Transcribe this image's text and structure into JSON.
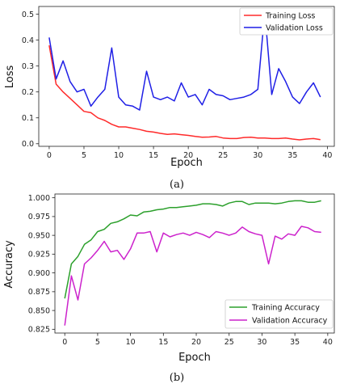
{
  "chart_data": [
    {
      "type": "line",
      "caption": "(a)",
      "xlabel": "Epoch",
      "ylabel": "Loss",
      "xlim": [
        -1.5,
        41
      ],
      "ylim": [
        -0.01,
        0.53
      ],
      "xticks": [
        0,
        5,
        10,
        15,
        20,
        25,
        30,
        35,
        40
      ],
      "yticks": [
        0.0,
        0.1,
        0.2,
        0.3,
        0.4,
        0.5
      ],
      "ytick_labels": [
        "0.0",
        "0.1",
        "0.2",
        "0.3",
        "0.4",
        "0.5"
      ],
      "legend_position": "top-right",
      "grid": false,
      "x": [
        0,
        1,
        2,
        3,
        4,
        5,
        6,
        7,
        8,
        9,
        10,
        11,
        12,
        13,
        14,
        15,
        16,
        17,
        18,
        19,
        20,
        21,
        22,
        23,
        24,
        25,
        26,
        27,
        28,
        29,
        30,
        31,
        32,
        33,
        34,
        35,
        36,
        37,
        38,
        39
      ],
      "series": [
        {
          "name": "Training Loss",
          "color": "#ff2a2a",
          "values": [
            0.38,
            0.23,
            0.2,
            0.175,
            0.15,
            0.125,
            0.12,
            0.1,
            0.09,
            0.075,
            0.065,
            0.065,
            0.06,
            0.055,
            0.048,
            0.045,
            0.04,
            0.036,
            0.038,
            0.035,
            0.032,
            0.028,
            0.025,
            0.026,
            0.028,
            0.022,
            0.02,
            0.02,
            0.024,
            0.025,
            0.022,
            0.022,
            0.02,
            0.02,
            0.022,
            0.018,
            0.015,
            0.018,
            0.02,
            0.016
          ]
        },
        {
          "name": "Validation Loss",
          "color": "#1f1fe6",
          "values": [
            0.41,
            0.25,
            0.32,
            0.24,
            0.2,
            0.21,
            0.145,
            0.18,
            0.21,
            0.37,
            0.18,
            0.15,
            0.145,
            0.13,
            0.28,
            0.18,
            0.17,
            0.18,
            0.165,
            0.235,
            0.18,
            0.19,
            0.15,
            0.21,
            0.19,
            0.185,
            0.17,
            0.175,
            0.18,
            0.19,
            0.21,
            0.51,
            0.19,
            0.29,
            0.24,
            0.18,
            0.155,
            0.2,
            0.235,
            0.18
          ]
        }
      ]
    },
    {
      "type": "line",
      "caption": "(b)",
      "xlabel": "Epoch",
      "ylabel": "Accuracy",
      "xlim": [
        -1.5,
        41
      ],
      "ylim": [
        0.82,
        1.005
      ],
      "xticks": [
        0,
        5,
        10,
        15,
        20,
        25,
        30,
        35,
        40
      ],
      "yticks": [
        0.825,
        0.85,
        0.875,
        0.9,
        0.925,
        0.95,
        0.975,
        1.0
      ],
      "ytick_labels": [
        "0.825",
        "0.850",
        "0.875",
        "0.900",
        "0.925",
        "0.950",
        "0.975",
        "1.000"
      ],
      "legend_position": "bottom-right",
      "grid": false,
      "x": [
        0,
        1,
        2,
        3,
        4,
        5,
        6,
        7,
        8,
        9,
        10,
        11,
        12,
        13,
        14,
        15,
        16,
        17,
        18,
        19,
        20,
        21,
        22,
        23,
        24,
        25,
        26,
        27,
        28,
        29,
        30,
        31,
        32,
        33,
        34,
        35,
        36,
        37,
        38,
        39
      ],
      "series": [
        {
          "name": "Training Accuracy",
          "color": "#2ca02c",
          "values": [
            0.866,
            0.912,
            0.922,
            0.938,
            0.944,
            0.955,
            0.958,
            0.966,
            0.968,
            0.972,
            0.977,
            0.976,
            0.981,
            0.982,
            0.984,
            0.985,
            0.987,
            0.987,
            0.988,
            0.989,
            0.99,
            0.992,
            0.992,
            0.991,
            0.989,
            0.993,
            0.995,
            0.995,
            0.991,
            0.993,
            0.993,
            0.993,
            0.992,
            0.993,
            0.995,
            0.996,
            0.996,
            0.994,
            0.994,
            0.996
          ]
        },
        {
          "name": "Validation Accuracy",
          "color": "#cc22cc",
          "values": [
            0.83,
            0.896,
            0.864,
            0.912,
            0.92,
            0.93,
            0.942,
            0.928,
            0.93,
            0.918,
            0.932,
            0.953,
            0.953,
            0.955,
            0.928,
            0.953,
            0.948,
            0.951,
            0.953,
            0.95,
            0.954,
            0.951,
            0.947,
            0.955,
            0.953,
            0.95,
            0.953,
            0.961,
            0.955,
            0.952,
            0.95,
            0.912,
            0.949,
            0.945,
            0.952,
            0.95,
            0.962,
            0.96,
            0.955,
            0.954
          ]
        }
      ]
    }
  ]
}
